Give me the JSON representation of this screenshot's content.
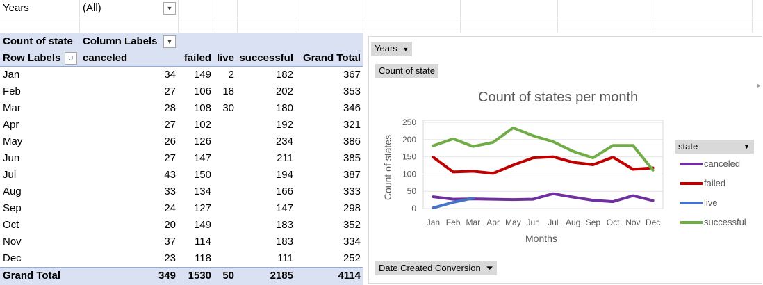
{
  "filter": {
    "label": "Years",
    "value": "(All)"
  },
  "pivot": {
    "header1": {
      "count_label": "Count of state",
      "col_labels": "Column Labels"
    },
    "header2": {
      "row_labels": "Row Labels",
      "columns": [
        "canceled",
        "failed",
        "live",
        "successful",
        "Grand Total"
      ]
    },
    "rows": [
      {
        "month": "Jan",
        "canceled": "34",
        "failed": "149",
        "live": "2",
        "successful": "182",
        "total": "367"
      },
      {
        "month": "Feb",
        "canceled": "27",
        "failed": "106",
        "live": "18",
        "successful": "202",
        "total": "353"
      },
      {
        "month": "Mar",
        "canceled": "28",
        "failed": "108",
        "live": "30",
        "successful": "180",
        "total": "346"
      },
      {
        "month": "Apr",
        "canceled": "27",
        "failed": "102",
        "live": "",
        "successful": "192",
        "total": "321"
      },
      {
        "month": "May",
        "canceled": "26",
        "failed": "126",
        "live": "",
        "successful": "234",
        "total": "386"
      },
      {
        "month": "Jun",
        "canceled": "27",
        "failed": "147",
        "live": "",
        "successful": "211",
        "total": "385"
      },
      {
        "month": "Jul",
        "canceled": "43",
        "failed": "150",
        "live": "",
        "successful": "194",
        "total": "387"
      },
      {
        "month": "Aug",
        "canceled": "33",
        "failed": "134",
        "live": "",
        "successful": "166",
        "total": "333"
      },
      {
        "month": "Sep",
        "canceled": "24",
        "failed": "127",
        "live": "",
        "successful": "147",
        "total": "298"
      },
      {
        "month": "Oct",
        "canceled": "20",
        "failed": "149",
        "live": "",
        "successful": "183",
        "total": "352"
      },
      {
        "month": "Nov",
        "canceled": "37",
        "failed": "114",
        "live": "",
        "successful": "183",
        "total": "334"
      },
      {
        "month": "Dec",
        "canceled": "23",
        "failed": "118",
        "live": "",
        "successful": "111",
        "total": "252"
      }
    ],
    "grand_total": {
      "label": "Grand Total",
      "canceled": "349",
      "failed": "1530",
      "live": "50",
      "successful": "2185",
      "total": "4114"
    }
  },
  "chart_buttons": {
    "years": "Years",
    "count": "Count of state",
    "date": "Date Created Conversion"
  },
  "legend_title": "state",
  "colors": {
    "canceled": "#7030a0",
    "failed": "#c00000",
    "live": "#4472c4",
    "successful": "#70ad47",
    "header_fill": "#d9e1f2"
  },
  "chart_data": {
    "type": "line",
    "title": "Count of states per month",
    "xlabel": "Months",
    "ylabel": "Count of states",
    "ylim": [
      0,
      250
    ],
    "yticks": [
      0,
      50,
      100,
      150,
      200,
      250
    ],
    "categories": [
      "Jan",
      "Feb",
      "Mar",
      "Apr",
      "May",
      "Jun",
      "Jul",
      "Aug",
      "Sep",
      "Oct",
      "Nov",
      "Dec"
    ],
    "series": [
      {
        "name": "canceled",
        "values": [
          34,
          27,
          28,
          27,
          26,
          27,
          43,
          33,
          24,
          20,
          37,
          23
        ]
      },
      {
        "name": "failed",
        "values": [
          149,
          106,
          108,
          102,
          126,
          147,
          150,
          134,
          127,
          149,
          114,
          118
        ]
      },
      {
        "name": "live",
        "values": [
          2,
          18,
          30,
          null,
          null,
          null,
          null,
          null,
          null,
          null,
          null,
          null
        ]
      },
      {
        "name": "successful",
        "values": [
          182,
          202,
          180,
          192,
          234,
          211,
          194,
          166,
          147,
          183,
          183,
          111
        ]
      }
    ],
    "legend_position": "right"
  }
}
